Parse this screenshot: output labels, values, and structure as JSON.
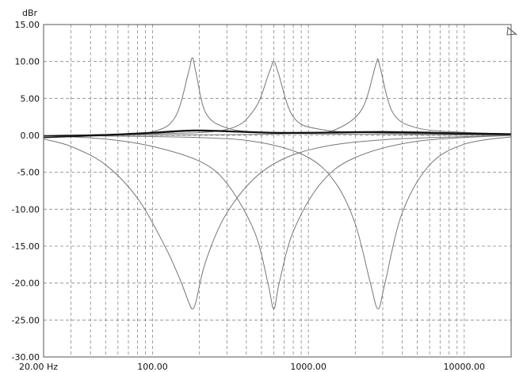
{
  "chart_data": {
    "type": "line",
    "title": "",
    "ylabel": "dBr",
    "xlabel": "",
    "x_scale": "log",
    "xlim": [
      20,
      20000
    ],
    "ylim": [
      -30,
      15
    ],
    "grid": true,
    "y_ticks": [
      15,
      10,
      5,
      0,
      -5,
      -10,
      -15,
      -20,
      -25,
      -30
    ],
    "y_tick_labels": [
      "15.00",
      "10.00",
      "5.00",
      "0.00",
      "-5.00",
      "-10.00",
      "-15.00",
      "-20.00",
      "-25.00",
      "-30.00"
    ],
    "x_ticks": [
      20,
      100,
      1000,
      10000
    ],
    "x_tick_labels": [
      "20.00 Hz",
      "100.00",
      "1000.00",
      "10000.00"
    ],
    "series": [
      {
        "color": "#777777",
        "x": [
          20,
          50,
          100,
          140,
          170,
          180,
          190,
          220,
          300,
          500,
          1000,
          5000,
          20000
        ],
        "y": [
          0.0,
          0.1,
          0.5,
          2.5,
          8.5,
          10.5,
          8.5,
          3.0,
          1.0,
          0.4,
          0.2,
          0.1,
          0.0
        ]
      },
      {
        "color": "#777777",
        "x": [
          20,
          100,
          300,
          450,
          560,
          600,
          640,
          800,
          1200,
          3000,
          20000
        ],
        "y": [
          0.0,
          0.2,
          0.8,
          3.5,
          8.5,
          10.0,
          8.5,
          2.5,
          0.8,
          0.3,
          0.1
        ]
      },
      {
        "color": "#777777",
        "x": [
          20,
          300,
          1000,
          1500,
          2200,
          2700,
          2800,
          2900,
          3500,
          5000,
          10000,
          20000
        ],
        "y": [
          0.0,
          0.1,
          0.3,
          0.8,
          3.5,
          9.5,
          10.3,
          9.0,
          3.0,
          1.0,
          0.4,
          0.2
        ]
      },
      {
        "color": "#777777",
        "x": [
          20,
          30,
          50,
          80,
          120,
          150,
          170,
          180,
          190,
          220,
          300,
          500,
          1000,
          3000,
          20000
        ],
        "y": [
          -0.5,
          -1.5,
          -4.0,
          -8.5,
          -15.0,
          -19.5,
          -22.5,
          -23.5,
          -22.5,
          -17.0,
          -10.5,
          -5.0,
          -2.0,
          -0.6,
          0.0
        ]
      },
      {
        "color": "#777777",
        "x": [
          20,
          50,
          100,
          200,
          300,
          450,
          550,
          600,
          650,
          800,
          1200,
          2000,
          5000,
          20000
        ],
        "y": [
          0.0,
          -0.5,
          -1.5,
          -3.5,
          -6.5,
          -13.0,
          -20.0,
          -23.5,
          -20.0,
          -13.0,
          -6.5,
          -3.0,
          -0.8,
          0.0
        ]
      },
      {
        "color": "#777777",
        "x": [
          20,
          200,
          500,
          1000,
          1500,
          2000,
          2500,
          2800,
          3100,
          4000,
          6000,
          10000,
          20000
        ],
        "y": [
          0.0,
          -0.3,
          -1.0,
          -3.0,
          -6.5,
          -12.0,
          -20.0,
          -23.5,
          -20.0,
          -10.5,
          -4.0,
          -1.2,
          -0.2
        ]
      },
      {
        "color": "#111111",
        "x": [
          20,
          50,
          100,
          180,
          300,
          600,
          1000,
          3000,
          10000,
          20000
        ],
        "y": [
          -0.3,
          0.0,
          0.3,
          0.6,
          0.5,
          0.3,
          0.3,
          0.4,
          0.2,
          0.1
        ]
      },
      {
        "color": "#111111",
        "x": [
          20,
          50,
          100,
          180,
          300,
          600,
          1000,
          3000,
          10000,
          20000
        ],
        "y": [
          -0.1,
          0.1,
          0.4,
          0.7,
          0.6,
          0.4,
          0.4,
          0.5,
          0.3,
          0.2
        ]
      }
    ]
  }
}
